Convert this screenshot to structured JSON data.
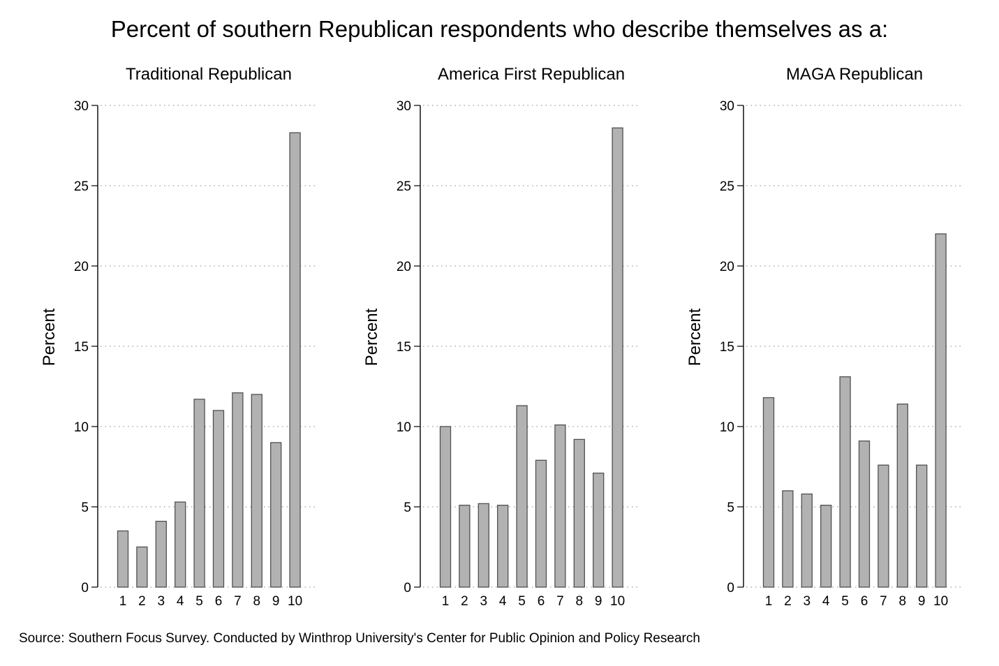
{
  "title": "Percent of southern Republican respondents who describe themselves as a:",
  "source": "Source: Southern Focus Survey. Conducted by Winthrop University's Center for Public Opinion and Policy Research",
  "chart_data": [
    {
      "type": "bar",
      "title": "Traditional Republican",
      "xlabel": "",
      "ylabel": "Percent",
      "categories": [
        "1",
        "2",
        "3",
        "4",
        "5",
        "6",
        "7",
        "8",
        "9",
        "10"
      ],
      "values": [
        3.5,
        2.5,
        4.1,
        5.3,
        11.7,
        11.0,
        12.1,
        12.0,
        9.0,
        28.3
      ],
      "ylim": [
        0,
        30
      ],
      "yticks": [
        0,
        5,
        10,
        15,
        20,
        25,
        30
      ],
      "grid": true,
      "bar_color": "#b2b2b2"
    },
    {
      "type": "bar",
      "title": "America First Republican",
      "xlabel": "",
      "ylabel": "Percent",
      "categories": [
        "1",
        "2",
        "3",
        "4",
        "5",
        "6",
        "7",
        "8",
        "9",
        "10"
      ],
      "values": [
        10.0,
        5.1,
        5.2,
        5.1,
        11.3,
        7.9,
        10.1,
        9.2,
        7.1,
        28.6
      ],
      "ylim": [
        0,
        30
      ],
      "yticks": [
        0,
        5,
        10,
        15,
        20,
        25,
        30
      ],
      "grid": true,
      "bar_color": "#b2b2b2"
    },
    {
      "type": "bar",
      "title": "MAGA Republican",
      "xlabel": "",
      "ylabel": "Percent",
      "categories": [
        "1",
        "2",
        "3",
        "4",
        "5",
        "6",
        "7",
        "8",
        "9",
        "10"
      ],
      "values": [
        11.8,
        6.0,
        5.8,
        5.1,
        13.1,
        9.1,
        7.6,
        11.4,
        7.6,
        22.0
      ],
      "ylim": [
        0,
        30
      ],
      "yticks": [
        0,
        5,
        10,
        15,
        20,
        25,
        30
      ],
      "grid": true,
      "bar_color": "#b2b2b2"
    }
  ]
}
